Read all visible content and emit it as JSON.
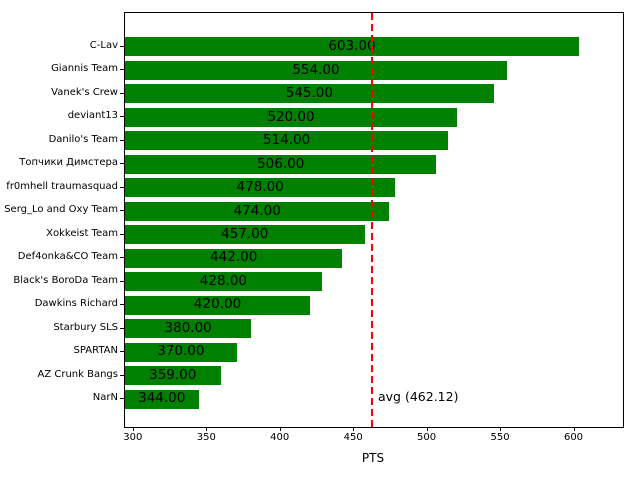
{
  "figure": {
    "background": "#ffffff",
    "spine_color": "#000000"
  },
  "chart_data": {
    "type": "bar",
    "orientation": "horizontal",
    "title": "",
    "xlabel": "PTS",
    "ylabel": "",
    "categories": [
      "C-Lav",
      "Giannis Team",
      "Vanek's Crew",
      "deviant13",
      "Danilo's Team",
      "Топчики Димстера",
      "fr0mhell traumasquad",
      "Serg_Lo and Oxy Team",
      "Xokkeist Team",
      "Def4onka&CO Team",
      "Black's BoroDa Team",
      "Dawkins Richard",
      "Starbury SLS",
      "SPARTAN",
      "AZ Crunk Bangs",
      "NarN"
    ],
    "values": [
      603,
      554,
      545,
      520,
      514,
      506,
      478,
      474,
      457,
      442,
      428,
      420,
      380,
      370,
      359,
      344
    ],
    "value_labels": [
      "603.00",
      "554.00",
      "545.00",
      "520.00",
      "514.00",
      "506.00",
      "478.00",
      "474.00",
      "457.00",
      "442.00",
      "428.00",
      "420.00",
      "380.00",
      "370.00",
      "359.00",
      "344.00"
    ],
    "bar_color": "#008000",
    "value_label_color": "#000000",
    "xlim": [
      294,
      633
    ],
    "xticks": [
      300,
      350,
      400,
      450,
      500,
      550,
      600
    ],
    "xtick_labels": [
      "300",
      "350",
      "400",
      "450",
      "500",
      "550",
      "600"
    ],
    "grid": false,
    "legend": null,
    "avg_line": {
      "value": 462.12,
      "label": "avg (462.12)",
      "color": "#ff0000",
      "linestyle": "dashed"
    }
  }
}
